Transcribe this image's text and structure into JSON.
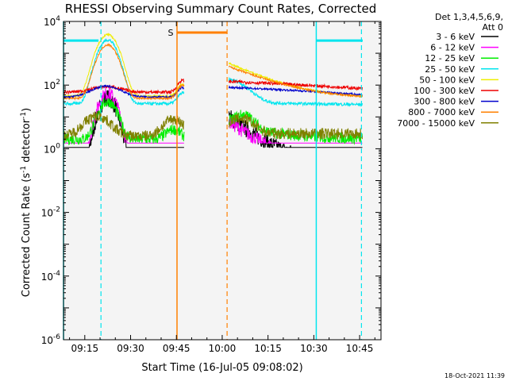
{
  "chart_data": {
    "type": "line",
    "title": "RHESSI Observing Summary Count Rates, Corrected",
    "xlabel": "Start Time (16-Jul-05 09:08:02)",
    "ylabel_prefix": "Corrected Count Rate (s",
    "ylabel_sup1": "-1",
    "ylabel_mid": " detector",
    "ylabel_sup2": "-1",
    "ylabel_suffix": ")",
    "x_ticks": [
      "09:15",
      "09:30",
      "09:45",
      "10:00",
      "10:15",
      "10:30",
      "10:45"
    ],
    "x_tick_minutes": [
      15,
      30,
      45,
      60,
      75,
      90,
      105
    ],
    "x_range_minutes": [
      8.03,
      112
    ],
    "y_scale": "log",
    "y_range": [
      1e-06,
      10000.0
    ],
    "y_tick_labels": [
      {
        "base": "10",
        "exp": "4",
        "value": 10000
      },
      {
        "base": "10",
        "exp": "2",
        "value": 100
      },
      {
        "base": "10",
        "exp": "0",
        "value": 1
      },
      {
        "base": "10",
        "exp": "-2",
        "value": 0.01
      },
      {
        "base": "10",
        "exp": "-4",
        "value": 0.0001
      },
      {
        "base": "10",
        "exp": "-6",
        "value": 1e-06
      }
    ],
    "legend_title_lines": [
      "Det 1,3,4,5,6,9,",
      "Att 0"
    ],
    "legend_placement": "right",
    "series": [
      {
        "name": "3 - 6 keV",
        "color": "#000000"
      },
      {
        "name": "6 - 12 keV",
        "color": "#ff00ff"
      },
      {
        "name": "12 - 25 keV",
        "color": "#00ee00"
      },
      {
        "name": "25 - 50 keV",
        "color": "#00e5ee"
      },
      {
        "name": "50 - 100 keV",
        "color": "#eeee00"
      },
      {
        "name": "100 - 300 keV",
        "color": "#ee0000"
      },
      {
        "name": "300 - 800 keV",
        "color": "#0000cc"
      },
      {
        "name": "800 - 7000 keV",
        "color": "#ff8000"
      },
      {
        "name": "7000 - 15000 keV",
        "color": "#808000"
      }
    ],
    "annotations": {
      "s_label": "S",
      "saa_bar_minutes": [
        45.2,
        61.6
      ],
      "orange_solid_minute": 45.2,
      "orange_dashed_minute": 61.6,
      "cyan_solid_minutes": [
        8.03,
        90.8
      ],
      "cyan_dashed_minutes": [
        20.3,
        105.6
      ],
      "night_level": 2500,
      "night_bar_minutes": [
        [
          8.03,
          19.5
        ],
        [
          90.8,
          106.0
        ]
      ]
    },
    "timestamp": "18-Oct-2021 11:39"
  }
}
